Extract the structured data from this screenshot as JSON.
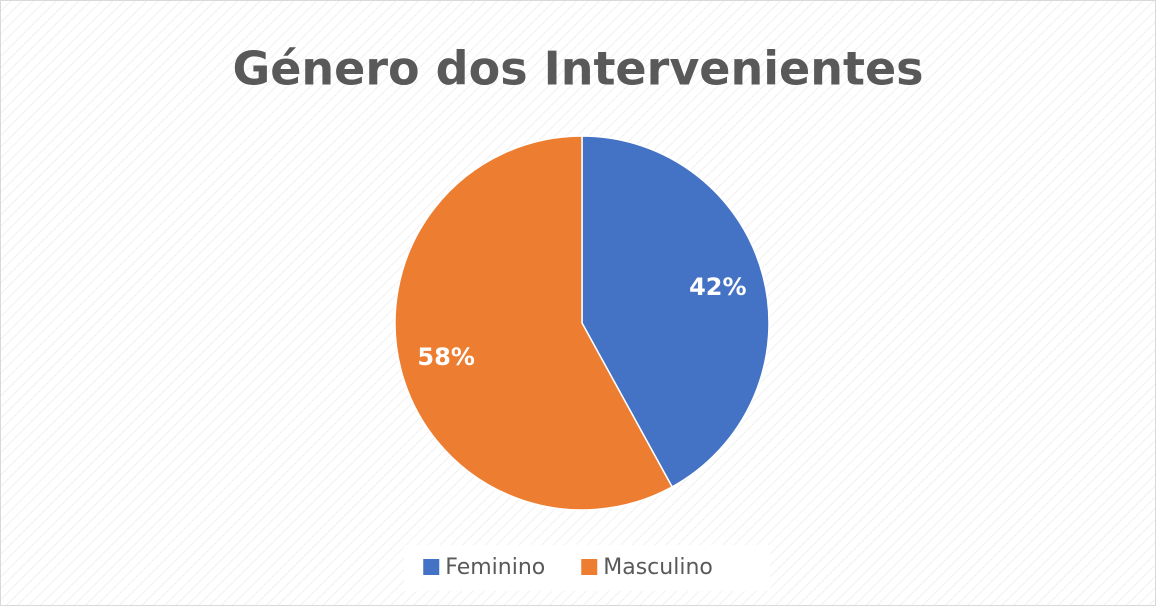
{
  "chart_data": {
    "type": "pie",
    "title": "Género dos Intervenientes",
    "categories": [
      "Feminino",
      "Masculino"
    ],
    "values": [
      42,
      58
    ],
    "value_labels": [
      "42%",
      "58%"
    ],
    "colors": [
      "#4472c4",
      "#ed7d31"
    ],
    "legend": "bottom"
  }
}
